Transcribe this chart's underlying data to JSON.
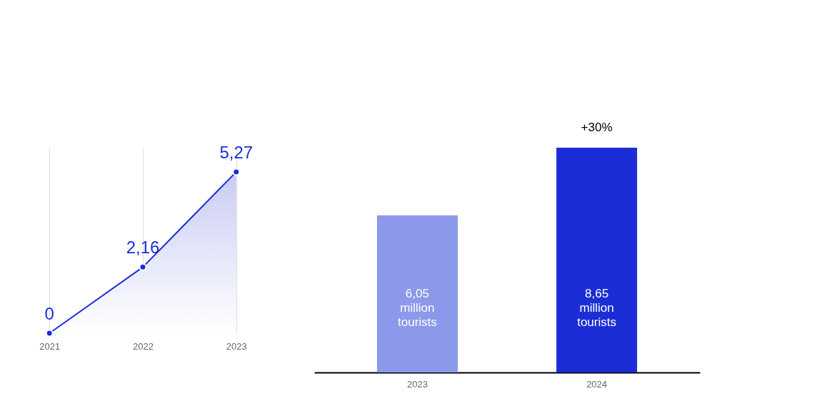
{
  "chart_data": [
    {
      "type": "area",
      "categories": [
        "2021",
        "2022",
        "2023"
      ],
      "color": "#1b2ed6",
      "values": [
        0,
        2.16,
        5.27
      ],
      "value_labels": [
        "0",
        "2,16",
        "5,27"
      ],
      "marker": "circle",
      "grid": "x",
      "legend": false
    },
    {
      "type": "bar",
      "categories": [
        "2023",
        "2024"
      ],
      "values": [
        6.05,
        8.65
      ],
      "colors": [
        "#8c98e9",
        "#1b2ed6"
      ],
      "value_labels": [
        "6,05 million tourists",
        "8,65 million tourists"
      ],
      "annotations": [
        {
          "text": "+30%",
          "x": "2024",
          "y": 8.65
        }
      ],
      "legend": false
    }
  ]
}
